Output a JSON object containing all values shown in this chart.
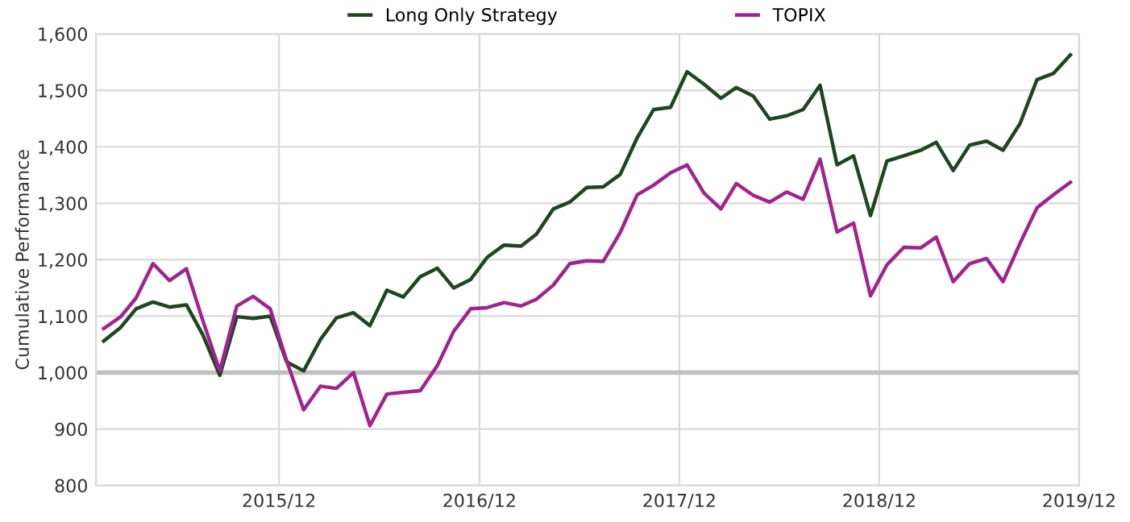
{
  "chart_data": {
    "type": "line",
    "ylabel": "Cumulative Performance",
    "x": [
      "2015-01-15",
      "2015-02-15",
      "2015-03-15",
      "2015-04-15",
      "2015-05-15",
      "2015-06-15",
      "2015-07-15",
      "2015-08-15",
      "2015-09-15",
      "2015-10-15",
      "2015-11-15",
      "2015-12-15",
      "2016-01-15",
      "2016-02-15",
      "2016-03-15",
      "2016-04-15",
      "2016-05-15",
      "2016-06-15",
      "2016-07-15",
      "2016-08-15",
      "2016-09-15",
      "2016-10-15",
      "2016-11-15",
      "2016-12-15",
      "2017-01-15",
      "2017-02-15",
      "2017-03-15",
      "2017-04-15",
      "2017-05-15",
      "2017-06-15",
      "2017-07-15",
      "2017-08-15",
      "2017-09-15",
      "2017-10-15",
      "2017-11-15",
      "2017-12-15",
      "2018-01-15",
      "2018-02-15",
      "2018-03-15",
      "2018-04-15",
      "2018-05-15",
      "2018-06-15",
      "2018-07-15",
      "2018-08-15",
      "2018-09-15",
      "2018-10-15",
      "2018-11-15",
      "2018-12-15",
      "2019-01-15",
      "2019-02-15",
      "2019-03-15",
      "2019-04-15",
      "2019-05-15",
      "2019-06-15",
      "2019-07-15",
      "2019-08-15",
      "2019-09-15",
      "2019-10-15",
      "2019-11-15"
    ],
    "series": [
      {
        "name": "Long Only Strategy",
        "color": "#1e4620",
        "values": [
          1056,
          1080,
          1113,
          1125,
          1116,
          1120,
          1067,
          995,
          1099,
          1096,
          1100,
          1019,
          1003,
          1059,
          1097,
          1106,
          1083,
          1146,
          1134,
          1170,
          1185,
          1150,
          1165,
          1204,
          1226,
          1224,
          1245,
          1290,
          1302,
          1328,
          1329,
          1351,
          1416,
          1466,
          1470,
          1533,
          1511,
          1486,
          1505,
          1490,
          1449,
          1455,
          1466,
          1509,
          1368,
          1384,
          1278,
          1375,
          1384,
          1394,
          1408,
          1358,
          1403,
          1410,
          1394,
          1441,
          1519,
          1530,
          1563
        ]
      },
      {
        "name": "TOPIX",
        "color": "#a0238f",
        "values": [
          1078,
          1099,
          1132,
          1193,
          1163,
          1184,
          1092,
          1003,
          1118,
          1135,
          1113,
          1021,
          934,
          976,
          972,
          1000,
          906,
          962,
          965,
          968,
          1012,
          1073,
          1113,
          1115,
          1124,
          1118,
          1130,
          1155,
          1193,
          1198,
          1197,
          1248,
          1315,
          1332,
          1354,
          1368,
          1318,
          1290,
          1335,
          1314,
          1302,
          1320,
          1307,
          1378,
          1249,
          1265,
          1136,
          1191,
          1222,
          1221,
          1240,
          1161,
          1193,
          1202,
          1161,
          1229,
          1292,
          1315,
          1337
        ]
      }
    ],
    "xlim": [
      "2015-01-01",
      "2019-12-01"
    ],
    "xticks": [
      {
        "value": "2015-12-01",
        "label": "2015/12"
      },
      {
        "value": "2016-12-01",
        "label": "2016/12"
      },
      {
        "value": "2017-12-01",
        "label": "2017/12"
      },
      {
        "value": "2018-12-01",
        "label": "2018/12"
      },
      {
        "value": "2019-12-01",
        "label": "2019/12"
      }
    ],
    "ylim": [
      800,
      1600
    ],
    "yticks": [
      800,
      900,
      {
        "value": 1000,
        "label": "1,000"
      },
      {
        "value": 1100,
        "label": "1,100"
      },
      {
        "value": 1200,
        "label": "1,200"
      },
      {
        "value": 1300,
        "label": "1,300"
      },
      {
        "value": 1400,
        "label": "1,400"
      },
      {
        "value": 1500,
        "label": "1,500"
      },
      {
        "value": 1600,
        "label": "1,600"
      }
    ],
    "ref_lines": [
      {
        "axis": "y",
        "value": 1000,
        "color": "#bfbfbf"
      }
    ],
    "grid": true,
    "legend": "top",
    "marker": "none",
    "line_style": "solid"
  }
}
